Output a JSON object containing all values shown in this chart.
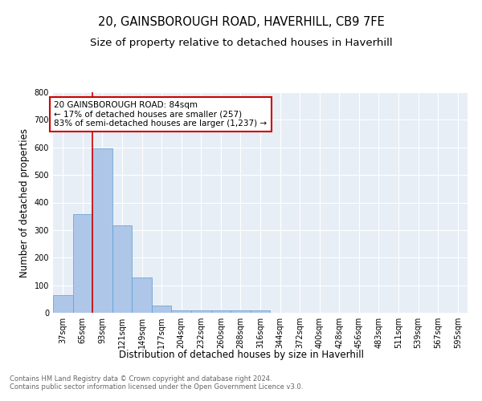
{
  "title1": "20, GAINSBOROUGH ROAD, HAVERHILL, CB9 7FE",
  "title2": "Size of property relative to detached houses in Haverhill",
  "xlabel": "Distribution of detached houses by size in Haverhill",
  "ylabel": "Number of detached properties",
  "bar_labels": [
    "37sqm",
    "65sqm",
    "93sqm",
    "121sqm",
    "149sqm",
    "177sqm",
    "204sqm",
    "232sqm",
    "260sqm",
    "288sqm",
    "316sqm",
    "344sqm",
    "372sqm",
    "400sqm",
    "428sqm",
    "456sqm",
    "483sqm",
    "511sqm",
    "539sqm",
    "567sqm",
    "595sqm"
  ],
  "bar_values": [
    65,
    357,
    597,
    317,
    128,
    27,
    9,
    8,
    8,
    8,
    8,
    0,
    0,
    0,
    0,
    0,
    0,
    0,
    0,
    0,
    0
  ],
  "bar_color": "#aec6e8",
  "bar_edge_color": "#5a9fd4",
  "bg_color": "#e8eef6",
  "vline_x": 1.5,
  "vline_color": "#cc0000",
  "annotation_text": "20 GAINSBOROUGH ROAD: 84sqm\n← 17% of detached houses are smaller (257)\n83% of semi-detached houses are larger (1,237) →",
  "annotation_box_color": "#cc0000",
  "ylim": [
    0,
    800
  ],
  "yticks": [
    0,
    100,
    200,
    300,
    400,
    500,
    600,
    700,
    800
  ],
  "footer": "Contains HM Land Registry data © Crown copyright and database right 2024.\nContains public sector information licensed under the Open Government Licence v3.0.",
  "title1_fontsize": 10.5,
  "title2_fontsize": 9.5,
  "tick_fontsize": 7,
  "ylabel_fontsize": 8.5,
  "xlabel_fontsize": 8.5,
  "footer_fontsize": 6.0
}
